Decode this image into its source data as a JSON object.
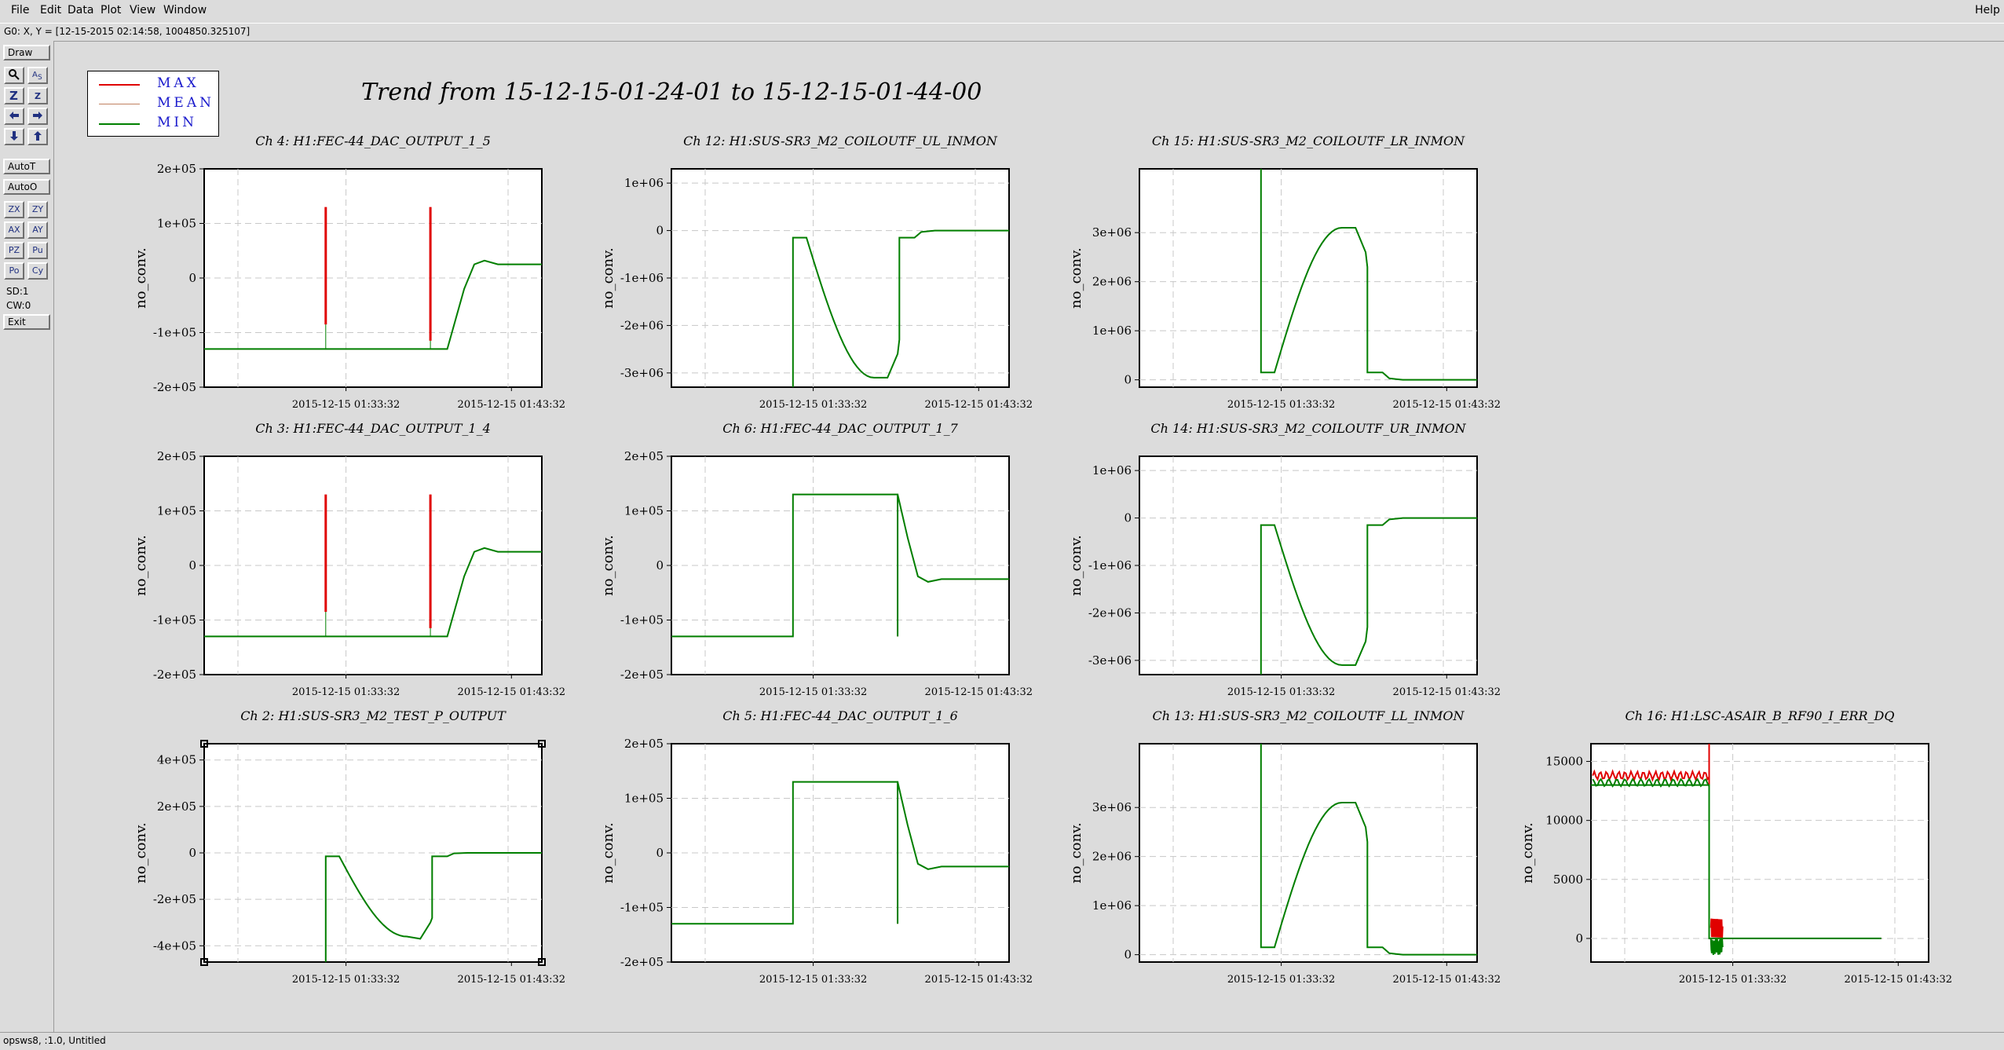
{
  "menubar": {
    "items": [
      "File",
      "Edit",
      "Data",
      "Plot",
      "View",
      "Window"
    ],
    "help": "Help"
  },
  "coord_readout": "G0: X, Y = [12-15-2015 02:14:58, 1004850.325107]",
  "toolbar": {
    "draw": "Draw",
    "autot": "AutoT",
    "autoo": "AutoO",
    "grid_buttons": [
      "ZX",
      "ZY",
      "AX",
      "AY",
      "PZ",
      "Pu",
      "Po",
      "Cy"
    ],
    "sd": "SD:1",
    "cw": "CW:0",
    "exit": "Exit"
  },
  "status": "opsws8, :1.0, Untitled",
  "title": "Trend from 15-12-15-01-24-01 to 15-12-15-01-44-00",
  "legend": {
    "max": "MAX",
    "mean": "MEAN",
    "min": "MIN",
    "colors": {
      "max": "#e00000",
      "mean": "#c08060",
      "min": "#008000"
    }
  },
  "chart_data": [
    {
      "type": "line",
      "title": "Ch 4: H1:FEC-44_DAC_OUTPUT_1_5",
      "ylabel": "no_conv.",
      "ylim": [
        -200000,
        200000
      ],
      "yticks": [
        200000,
        100000,
        0,
        -100000,
        -200000
      ],
      "ytick_labels": [
        "2e+05",
        "1e+05",
        "0",
        "-1e+05",
        "-2e+05"
      ],
      "xtick_labels": [
        "2015-12-15 01:33:32",
        "2015-12-15 01:43:32"
      ],
      "shape": "dac"
    },
    {
      "type": "line",
      "title": "Ch 12: H1:SUS-SR3_M2_COILOUTF_UL_INMON",
      "ylabel": "no_conv.",
      "ylim": [
        -3300000,
        1300000
      ],
      "yticks": [
        1000000,
        0,
        -1000000,
        -2000000,
        -3000000
      ],
      "ytick_labels": [
        "1e+06",
        "0",
        "-1e+06",
        "-2e+06",
        "-3e+06"
      ],
      "xtick_labels": [
        "2015-12-15 01:33:32",
        "2015-12-15 01:43:32"
      ],
      "shape": "coil_neg"
    },
    {
      "type": "line",
      "title": "Ch 15: H1:SUS-SR3_M2_COILOUTF_LR_INMON",
      "ylabel": "no_conv.",
      "ylim": [
        -150000,
        4300000
      ],
      "yticks": [
        3000000,
        2000000,
        1000000,
        0
      ],
      "ytick_labels": [
        "3e+06",
        "2e+06",
        "1e+06",
        "0"
      ],
      "xtick_labels": [
        "2015-12-15 01:33:32",
        "2015-12-15 01:43:32"
      ],
      "shape": "coil_pos"
    },
    {
      "type": "line",
      "title": "Ch 3: H1:FEC-44_DAC_OUTPUT_1_4",
      "ylabel": "no_conv.",
      "ylim": [
        -200000,
        200000
      ],
      "yticks": [
        200000,
        100000,
        0,
        -100000,
        -200000
      ],
      "ytick_labels": [
        "2e+05",
        "1e+05",
        "0",
        "-1e+05",
        "-2e+05"
      ],
      "xtick_labels": [
        "2015-12-15 01:33:32",
        "2015-12-15 01:43:32"
      ],
      "shape": "dac"
    },
    {
      "type": "line",
      "title": "Ch 6: H1:FEC-44_DAC_OUTPUT_1_7",
      "ylabel": "no_conv.",
      "ylim": [
        -200000,
        200000
      ],
      "yticks": [
        200000,
        100000,
        0,
        -100000,
        -200000
      ],
      "ytick_labels": [
        "2e+05",
        "1e+05",
        "0",
        "-1e+05",
        "-2e+05"
      ],
      "xtick_labels": [
        "2015-12-15 01:33:32",
        "2015-12-15 01:43:32"
      ],
      "shape": "step"
    },
    {
      "type": "line",
      "title": "Ch 14: H1:SUS-SR3_M2_COILOUTF_UR_INMON",
      "ylabel": "no_conv.",
      "ylim": [
        -3300000,
        1300000
      ],
      "yticks": [
        1000000,
        0,
        -1000000,
        -2000000,
        -3000000
      ],
      "ytick_labels": [
        "1e+06",
        "0",
        "-1e+06",
        "-2e+06",
        "-3e+06"
      ],
      "xtick_labels": [
        "2015-12-15 01:33:32",
        "2015-12-15 01:43:32"
      ],
      "shape": "coil_neg"
    },
    {
      "type": "line",
      "title": "Ch 2: H1:SUS-SR3_M2_TEST_P_OUTPUT",
      "ylabel": "no_conv.",
      "ylim": [
        -470000,
        470000
      ],
      "yticks": [
        400000,
        200000,
        0,
        -200000,
        -400000
      ],
      "ytick_labels": [
        "4e+05",
        "2e+05",
        "0",
        "-2e+05",
        "-4e+05"
      ],
      "xtick_labels": [
        "2015-12-15 01:33:32",
        "2015-12-15 01:43:32"
      ],
      "shape": "test"
    },
    {
      "type": "line",
      "title": "Ch 5: H1:FEC-44_DAC_OUTPUT_1_6",
      "ylabel": "no_conv.",
      "ylim": [
        -200000,
        200000
      ],
      "yticks": [
        200000,
        100000,
        0,
        -100000,
        -200000
      ],
      "ytick_labels": [
        "2e+05",
        "1e+05",
        "0",
        "-1e+05",
        "-2e+05"
      ],
      "xtick_labels": [
        "2015-12-15 01:33:32",
        "2015-12-15 01:43:32"
      ],
      "shape": "step"
    },
    {
      "type": "line",
      "title": "Ch 13: H1:SUS-SR3_M2_COILOUTF_LL_INMON",
      "ylabel": "no_conv.",
      "ylim": [
        -150000,
        4300000
      ],
      "yticks": [
        3000000,
        2000000,
        1000000,
        0
      ],
      "ytick_labels": [
        "3e+06",
        "2e+06",
        "1e+06",
        "0"
      ],
      "xtick_labels": [
        "2015-12-15 01:33:32",
        "2015-12-15 01:43:32"
      ],
      "shape": "coil_pos"
    },
    {
      "type": "line",
      "title": "Ch 16: H1:LSC-ASAIR_B_RF90_I_ERR_DQ",
      "ylabel": "no_conv.",
      "ylim": [
        -2000,
        16500
      ],
      "yticks": [
        15000,
        10000,
        5000,
        0
      ],
      "ytick_labels": [
        "15000",
        "10000",
        "5000",
        "0"
      ],
      "xtick_labels": [
        "2015-12-15 01:33:32",
        "2015-12-15 01:43:32"
      ],
      "shape": "asair"
    }
  ]
}
